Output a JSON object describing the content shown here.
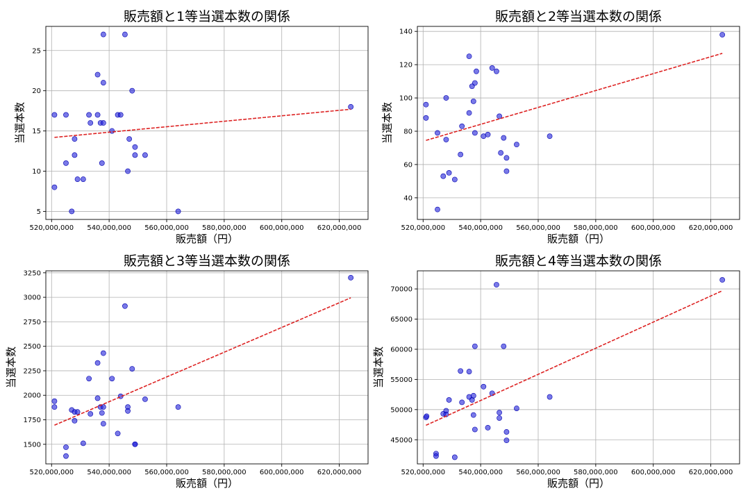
{
  "chart_data": [
    {
      "type": "scatter",
      "title": "販売額と1等当選本数の関係",
      "xlabel": "販売額（円）",
      "ylabel": "当選本数",
      "xlim": [
        518000000,
        630000000
      ],
      "ylim": [
        4,
        28
      ],
      "xticks": [
        520000000,
        540000000,
        560000000,
        580000000,
        600000000,
        620000000
      ],
      "xtick_labels": [
        "520,000,000",
        "540,000,000",
        "560,000,000",
        "580,000,000",
        "600,000,000",
        "620,000,000"
      ],
      "yticks": [
        5,
        10,
        15,
        20,
        25
      ],
      "ytick_labels": [
        "5",
        "10",
        "15",
        "20",
        "25"
      ],
      "grid": true,
      "points": [
        {
          "x": 521000000,
          "y": 17
        },
        {
          "x": 521000000,
          "y": 8
        },
        {
          "x": 525000000,
          "y": 17
        },
        {
          "x": 525000000,
          "y": 11
        },
        {
          "x": 527000000,
          "y": 5
        },
        {
          "x": 528000000,
          "y": 14
        },
        {
          "x": 528000000,
          "y": 12
        },
        {
          "x": 529000000,
          "y": 9
        },
        {
          "x": 531000000,
          "y": 9
        },
        {
          "x": 533000000,
          "y": 17
        },
        {
          "x": 533500000,
          "y": 16
        },
        {
          "x": 536000000,
          "y": 22
        },
        {
          "x": 536000000,
          "y": 17
        },
        {
          "x": 537000000,
          "y": 16
        },
        {
          "x": 537500000,
          "y": 11
        },
        {
          "x": 538000000,
          "y": 16
        },
        {
          "x": 538000000,
          "y": 27
        },
        {
          "x": 538000000,
          "y": 21
        },
        {
          "x": 541000000,
          "y": 15
        },
        {
          "x": 543000000,
          "y": 17
        },
        {
          "x": 544000000,
          "y": 17
        },
        {
          "x": 545500000,
          "y": 27
        },
        {
          "x": 546500000,
          "y": 10
        },
        {
          "x": 547000000,
          "y": 14
        },
        {
          "x": 548000000,
          "y": 20
        },
        {
          "x": 549000000,
          "y": 13
        },
        {
          "x": 549000000,
          "y": 12
        },
        {
          "x": 552500000,
          "y": 12
        },
        {
          "x": 564000000,
          "y": 5
        },
        {
          "x": 624000000,
          "y": 18
        }
      ],
      "trendline": {
        "x_start": 521000000,
        "y_start": 14.2,
        "x_end": 624000000,
        "y_end": 17.7
      }
    },
    {
      "type": "scatter",
      "title": "販売額と2等当選本数の関係",
      "xlabel": "販売額（円）",
      "ylabel": "当選本数",
      "xlim": [
        518000000,
        630000000
      ],
      "ylim": [
        27,
        143
      ],
      "xticks": [
        520000000,
        540000000,
        560000000,
        580000000,
        600000000,
        620000000
      ],
      "xtick_labels": [
        "520,000,000",
        "540,000,000",
        "560,000,000",
        "580,000,000",
        "600,000,000",
        "620,000,000"
      ],
      "yticks": [
        40,
        60,
        80,
        100,
        120,
        140
      ],
      "ytick_labels": [
        "40",
        "60",
        "80",
        "100",
        "120",
        "140"
      ],
      "grid": true,
      "points": [
        {
          "x": 521000000,
          "y": 96
        },
        {
          "x": 521000000,
          "y": 88
        },
        {
          "x": 525000000,
          "y": 79
        },
        {
          "x": 525000000,
          "y": 33
        },
        {
          "x": 527000000,
          "y": 53
        },
        {
          "x": 528000000,
          "y": 100
        },
        {
          "x": 528000000,
          "y": 75
        },
        {
          "x": 529000000,
          "y": 55
        },
        {
          "x": 531000000,
          "y": 51
        },
        {
          "x": 533000000,
          "y": 66
        },
        {
          "x": 533500000,
          "y": 83
        },
        {
          "x": 536000000,
          "y": 125
        },
        {
          "x": 536000000,
          "y": 91
        },
        {
          "x": 537000000,
          "y": 107
        },
        {
          "x": 537500000,
          "y": 98
        },
        {
          "x": 538000000,
          "y": 79
        },
        {
          "x": 538000000,
          "y": 109
        },
        {
          "x": 538500000,
          "y": 116
        },
        {
          "x": 541000000,
          "y": 77
        },
        {
          "x": 542500000,
          "y": 78
        },
        {
          "x": 544000000,
          "y": 118
        },
        {
          "x": 545500000,
          "y": 116
        },
        {
          "x": 546500000,
          "y": 89
        },
        {
          "x": 547000000,
          "y": 67
        },
        {
          "x": 548000000,
          "y": 76
        },
        {
          "x": 549000000,
          "y": 64
        },
        {
          "x": 549000000,
          "y": 56
        },
        {
          "x": 552500000,
          "y": 72
        },
        {
          "x": 564000000,
          "y": 77
        },
        {
          "x": 624000000,
          "y": 138
        }
      ],
      "trendline": {
        "x_start": 521000000,
        "y_start": 74.5,
        "x_end": 624000000,
        "y_end": 126.8
      }
    },
    {
      "type": "scatter",
      "title": "販売額と3等当選本数の関係",
      "xlabel": "販売額（円）",
      "ylabel": "当選本数",
      "xlim": [
        518000000,
        630000000
      ],
      "ylim": [
        1300,
        3270
      ],
      "xticks": [
        520000000,
        540000000,
        560000000,
        580000000,
        600000000,
        620000000
      ],
      "xtick_labels": [
        "520,000,000",
        "540,000,000",
        "560,000,000",
        "580,000,000",
        "600,000,000",
        "620,000,000"
      ],
      "yticks": [
        1500,
        1750,
        2000,
        2250,
        2500,
        2750,
        3000,
        3250
      ],
      "ytick_labels": [
        "1500",
        "1750",
        "2000",
        "2250",
        "2500",
        "2750",
        "3000",
        "3250"
      ],
      "grid": true,
      "points": [
        {
          "x": 521000000,
          "y": 1940
        },
        {
          "x": 521000000,
          "y": 1880
        },
        {
          "x": 525000000,
          "y": 1470
        },
        {
          "x": 525000000,
          "y": 1380
        },
        {
          "x": 527000000,
          "y": 1850
        },
        {
          "x": 528000000,
          "y": 1830
        },
        {
          "x": 528000000,
          "y": 1740
        },
        {
          "x": 529000000,
          "y": 1830
        },
        {
          "x": 531000000,
          "y": 1510
        },
        {
          "x": 533000000,
          "y": 2170
        },
        {
          "x": 533500000,
          "y": 1810
        },
        {
          "x": 536000000,
          "y": 2330
        },
        {
          "x": 536000000,
          "y": 1970
        },
        {
          "x": 537000000,
          "y": 1880
        },
        {
          "x": 537500000,
          "y": 1820
        },
        {
          "x": 538000000,
          "y": 1880
        },
        {
          "x": 538000000,
          "y": 2430
        },
        {
          "x": 538000000,
          "y": 1710
        },
        {
          "x": 541000000,
          "y": 2170
        },
        {
          "x": 543000000,
          "y": 1610
        },
        {
          "x": 544000000,
          "y": 1990
        },
        {
          "x": 545500000,
          "y": 2910
        },
        {
          "x": 546500000,
          "y": 1880
        },
        {
          "x": 546500000,
          "y": 1840
        },
        {
          "x": 548000000,
          "y": 2270
        },
        {
          "x": 549000000,
          "y": 1500
        },
        {
          "x": 549000000,
          "y": 1500
        },
        {
          "x": 552500000,
          "y": 1960
        },
        {
          "x": 564000000,
          "y": 1880
        },
        {
          "x": 624000000,
          "y": 3200
        }
      ],
      "trendline": {
        "x_start": 521000000,
        "y_start": 1695,
        "x_end": 624000000,
        "y_end": 2995
      }
    },
    {
      "type": "scatter",
      "title": "販売額と4等当選本数の関係",
      "xlabel": "販売額（円）",
      "ylabel": "当選本数",
      "xlim": [
        518000000,
        630000000
      ],
      "ylim": [
        41000,
        73000
      ],
      "xticks": [
        520000000,
        540000000,
        560000000,
        580000000,
        600000000,
        620000000
      ],
      "xtick_labels": [
        "520,000,000",
        "540,000,000",
        "560,000,000",
        "580,000,000",
        "600,000,000",
        "620,000,000"
      ],
      "yticks": [
        45000,
        50000,
        55000,
        60000,
        65000,
        70000
      ],
      "ytick_labels": [
        "45000",
        "50000",
        "55000",
        "60000",
        "65000",
        "70000"
      ],
      "grid": true,
      "points": [
        {
          "x": 521000000,
          "y": 48700
        },
        {
          "x": 521200000,
          "y": 48900
        },
        {
          "x": 524500000,
          "y": 42700
        },
        {
          "x": 524500000,
          "y": 42300
        },
        {
          "x": 527000000,
          "y": 49300
        },
        {
          "x": 528000000,
          "y": 49800
        },
        {
          "x": 528000000,
          "y": 49200
        },
        {
          "x": 529000000,
          "y": 51600
        },
        {
          "x": 531000000,
          "y": 42100
        },
        {
          "x": 533000000,
          "y": 56400
        },
        {
          "x": 533500000,
          "y": 51200
        },
        {
          "x": 536000000,
          "y": 56300
        },
        {
          "x": 536000000,
          "y": 52100
        },
        {
          "x": 537000000,
          "y": 51600
        },
        {
          "x": 537500000,
          "y": 52300
        },
        {
          "x": 537500000,
          "y": 49100
        },
        {
          "x": 538000000,
          "y": 46700
        },
        {
          "x": 538000000,
          "y": 60500
        },
        {
          "x": 541000000,
          "y": 53800
        },
        {
          "x": 542500000,
          "y": 47000
        },
        {
          "x": 544000000,
          "y": 52700
        },
        {
          "x": 545500000,
          "y": 70700
        },
        {
          "x": 546500000,
          "y": 49500
        },
        {
          "x": 546500000,
          "y": 48600
        },
        {
          "x": 548000000,
          "y": 60500
        },
        {
          "x": 549000000,
          "y": 46300
        },
        {
          "x": 549000000,
          "y": 44900
        },
        {
          "x": 552500000,
          "y": 50200
        },
        {
          "x": 564000000,
          "y": 52100
        },
        {
          "x": 624000000,
          "y": 71500
        }
      ],
      "trendline": {
        "x_start": 521000000,
        "y_start": 47400,
        "x_end": 624000000,
        "y_end": 69700
      }
    }
  ],
  "style": {
    "point_color": "#1f1fd9",
    "point_edge_color": "#0000b0",
    "trend_color": "#dd2222",
    "grid_color": "#b0b0b0"
  }
}
